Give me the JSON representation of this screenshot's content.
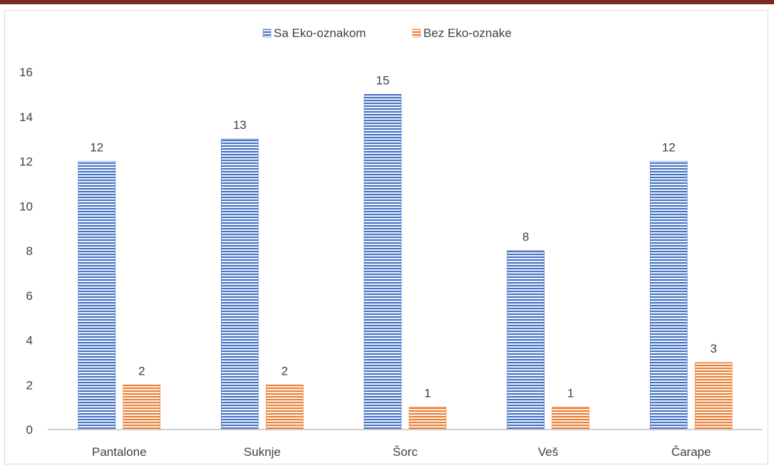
{
  "chart_data": {
    "type": "bar",
    "categories": [
      "Pantalone",
      "Suknje",
      "Šorc",
      "Veš",
      "Čarape"
    ],
    "series": [
      {
        "name": "Sa Eko-oznakom",
        "values": [
          12,
          13,
          15,
          8,
          12
        ],
        "color": "#4472c4"
      },
      {
        "name": "Bez Eko-oznake",
        "values": [
          2,
          2,
          1,
          1,
          3
        ],
        "color": "#ed7d31"
      }
    ],
    "ylim": [
      0,
      16
    ],
    "yticks": [
      "0",
      "2",
      "4",
      "6",
      "8",
      "10",
      "12",
      "14",
      "16"
    ],
    "grid": false,
    "legend": "top-center",
    "data_labels": true
  }
}
